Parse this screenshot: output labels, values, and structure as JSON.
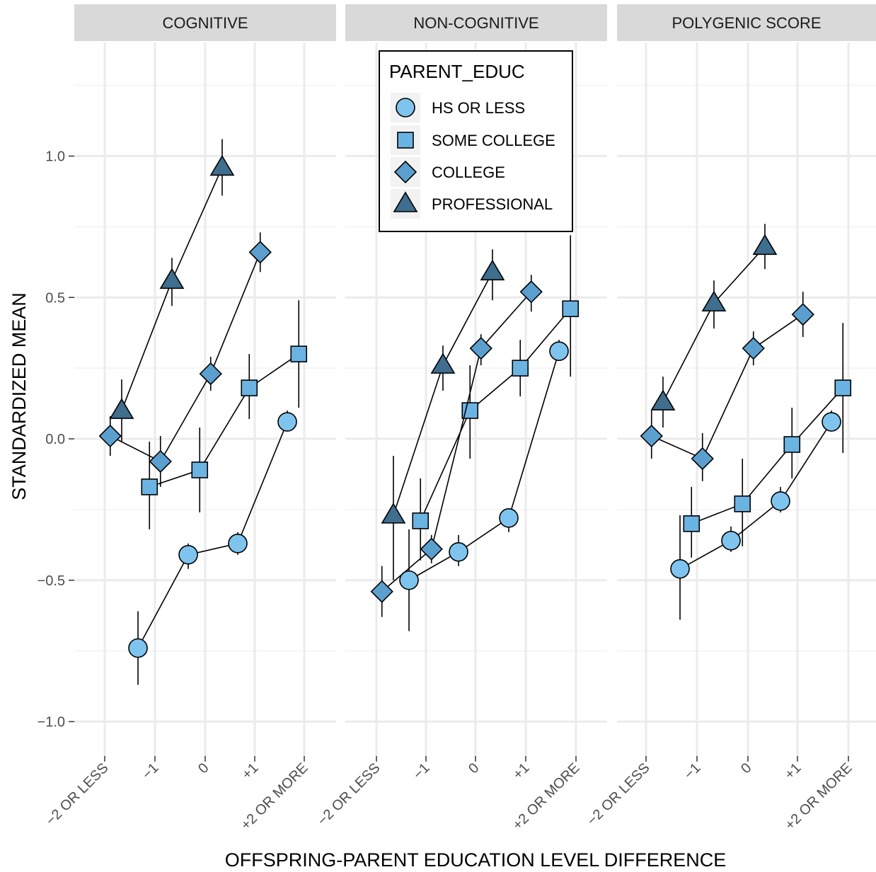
{
  "chart_data": {
    "type": "scatter",
    "facets": [
      "COGNITIVE",
      "NON-COGNITIVE",
      "POLYGENIC SCORE"
    ],
    "categories": [
      "-2 OR LESS",
      "-1",
      "0",
      "+1",
      "+2 OR MORE"
    ],
    "xlabel": "OFFSPRING-PARENT EDUCATION LEVEL DIFFERENCE",
    "ylabel": "STANDARDIZED MEAN",
    "ylim": [
      -1.12,
      1.38
    ],
    "yticks": [
      -1.0,
      -0.5,
      0.0,
      0.5,
      1.0
    ],
    "ytick_labels": [
      "-1.0",
      "-0.5",
      "0.0",
      "0.5",
      "1.0"
    ],
    "grid": true,
    "legend": {
      "title": "PARENT_EDUC",
      "placement": "top-center",
      "entries": [
        "HS OR LESS",
        "SOME COLLEGE",
        "COLLEGE",
        "PROFESSIONAL"
      ]
    },
    "series": [
      {
        "name": "HS OR LESS",
        "shape": "circle",
        "color": "#7FC4EE",
        "panels": [
          {
            "points": [
              {
                "x": "-1",
                "y": -0.74,
                "lo": -0.87,
                "hi": -0.61
              },
              {
                "x": "0",
                "y": -0.41,
                "lo": -0.46,
                "hi": -0.37
              },
              {
                "x": "+1",
                "y": -0.37,
                "lo": -0.41,
                "hi": -0.33
              },
              {
                "x": "+2 OR MORE",
                "y": 0.06,
                "lo": 0.03,
                "hi": 0.1
              }
            ]
          },
          {
            "points": [
              {
                "x": "-1",
                "y": -0.5,
                "lo": -0.68,
                "hi": -0.32
              },
              {
                "x": "0",
                "y": -0.4,
                "lo": -0.45,
                "hi": -0.34
              },
              {
                "x": "+1",
                "y": -0.28,
                "lo": -0.33,
                "hi": -0.25
              },
              {
                "x": "+2 OR MORE",
                "y": 0.31,
                "lo": 0.28,
                "hi": 0.35
              }
            ]
          },
          {
            "points": [
              {
                "x": "-1",
                "y": -0.46,
                "lo": -0.64,
                "hi": -0.27
              },
              {
                "x": "0",
                "y": -0.36,
                "lo": -0.4,
                "hi": -0.31
              },
              {
                "x": "+1",
                "y": -0.22,
                "lo": -0.26,
                "hi": -0.17
              },
              {
                "x": "+2 OR MORE",
                "y": 0.06,
                "lo": 0.03,
                "hi": 0.1
              }
            ]
          }
        ]
      },
      {
        "name": "SOME COLLEGE",
        "shape": "square",
        "color": "#6BB3E2",
        "panels": [
          {
            "points": [
              {
                "x": "-1",
                "y": -0.17,
                "lo": -0.32,
                "hi": -0.01
              },
              {
                "x": "0",
                "y": -0.11,
                "lo": -0.26,
                "hi": 0.04
              },
              {
                "x": "+1",
                "y": 0.18,
                "lo": 0.07,
                "hi": 0.3
              },
              {
                "x": "+2 OR MORE",
                "y": 0.3,
                "lo": 0.11,
                "hi": 0.49
              }
            ]
          },
          {
            "points": [
              {
                "x": "-1",
                "y": -0.29,
                "lo": -0.43,
                "hi": -0.14
              },
              {
                "x": "0",
                "y": 0.1,
                "lo": -0.07,
                "hi": 0.26
              },
              {
                "x": "+1",
                "y": 0.25,
                "lo": 0.15,
                "hi": 0.35
              },
              {
                "x": "+2 OR MORE",
                "y": 0.46,
                "lo": 0.22,
                "hi": 0.72
              }
            ]
          },
          {
            "points": [
              {
                "x": "-1",
                "y": -0.3,
                "lo": -0.42,
                "hi": -0.17
              },
              {
                "x": "0",
                "y": -0.23,
                "lo": -0.38,
                "hi": -0.07
              },
              {
                "x": "+1",
                "y": -0.02,
                "lo": -0.14,
                "hi": 0.11
              },
              {
                "x": "+2 OR MORE",
                "y": 0.18,
                "lo": -0.05,
                "hi": 0.41
              }
            ]
          }
        ]
      },
      {
        "name": "COLLEGE",
        "shape": "diamond",
        "color": "#5B9FCF",
        "panels": [
          {
            "points": [
              {
                "x": "-2 OR LESS",
                "y": 0.01,
                "lo": -0.06,
                "hi": 0.08
              },
              {
                "x": "-1",
                "y": -0.08,
                "lo": -0.17,
                "hi": 0.01
              },
              {
                "x": "0",
                "y": 0.23,
                "lo": 0.17,
                "hi": 0.29
              },
              {
                "x": "+1",
                "y": 0.66,
                "lo": 0.59,
                "hi": 0.73
              }
            ]
          },
          {
            "points": [
              {
                "x": "-2 OR LESS",
                "y": -0.54,
                "lo": -0.63,
                "hi": -0.45
              },
              {
                "x": "-1",
                "y": -0.39,
                "lo": -0.44,
                "hi": -0.34
              },
              {
                "x": "0",
                "y": 0.32,
                "lo": 0.26,
                "hi": 0.37
              },
              {
                "x": "+1",
                "y": 0.52,
                "lo": 0.45,
                "hi": 0.58
              }
            ]
          },
          {
            "points": [
              {
                "x": "-2 OR LESS",
                "y": 0.01,
                "lo": -0.07,
                "hi": 0.1
              },
              {
                "x": "-1",
                "y": -0.07,
                "lo": -0.15,
                "hi": 0.02
              },
              {
                "x": "0",
                "y": 0.32,
                "lo": 0.26,
                "hi": 0.38
              },
              {
                "x": "+1",
                "y": 0.44,
                "lo": 0.36,
                "hi": 0.52
              }
            ]
          }
        ]
      },
      {
        "name": "PROFESSIONAL",
        "shape": "triangle",
        "color": "#3F6E8E",
        "panels": [
          {
            "points": [
              {
                "x": "-2 OR LESS",
                "y": 0.1,
                "lo": -0.01,
                "hi": 0.21
              },
              {
                "x": "-1",
                "y": 0.56,
                "lo": 0.47,
                "hi": 0.64
              },
              {
                "x": "0",
                "y": 0.96,
                "lo": 0.86,
                "hi": 1.06
              }
            ]
          },
          {
            "points": [
              {
                "x": "-2 OR LESS",
                "y": -0.27,
                "lo": -0.5,
                "hi": -0.06
              },
              {
                "x": "-1",
                "y": 0.26,
                "lo": 0.17,
                "hi": 0.33
              },
              {
                "x": "0",
                "y": 0.59,
                "lo": 0.49,
                "hi": 0.67
              }
            ]
          },
          {
            "points": [
              {
                "x": "-2 OR LESS",
                "y": 0.13,
                "lo": 0.04,
                "hi": 0.22
              },
              {
                "x": "-1",
                "y": 0.48,
                "lo": 0.39,
                "hi": 0.56
              },
              {
                "x": "0",
                "y": 0.68,
                "lo": 0.6,
                "hi": 0.76
              }
            ]
          }
        ]
      }
    ]
  }
}
